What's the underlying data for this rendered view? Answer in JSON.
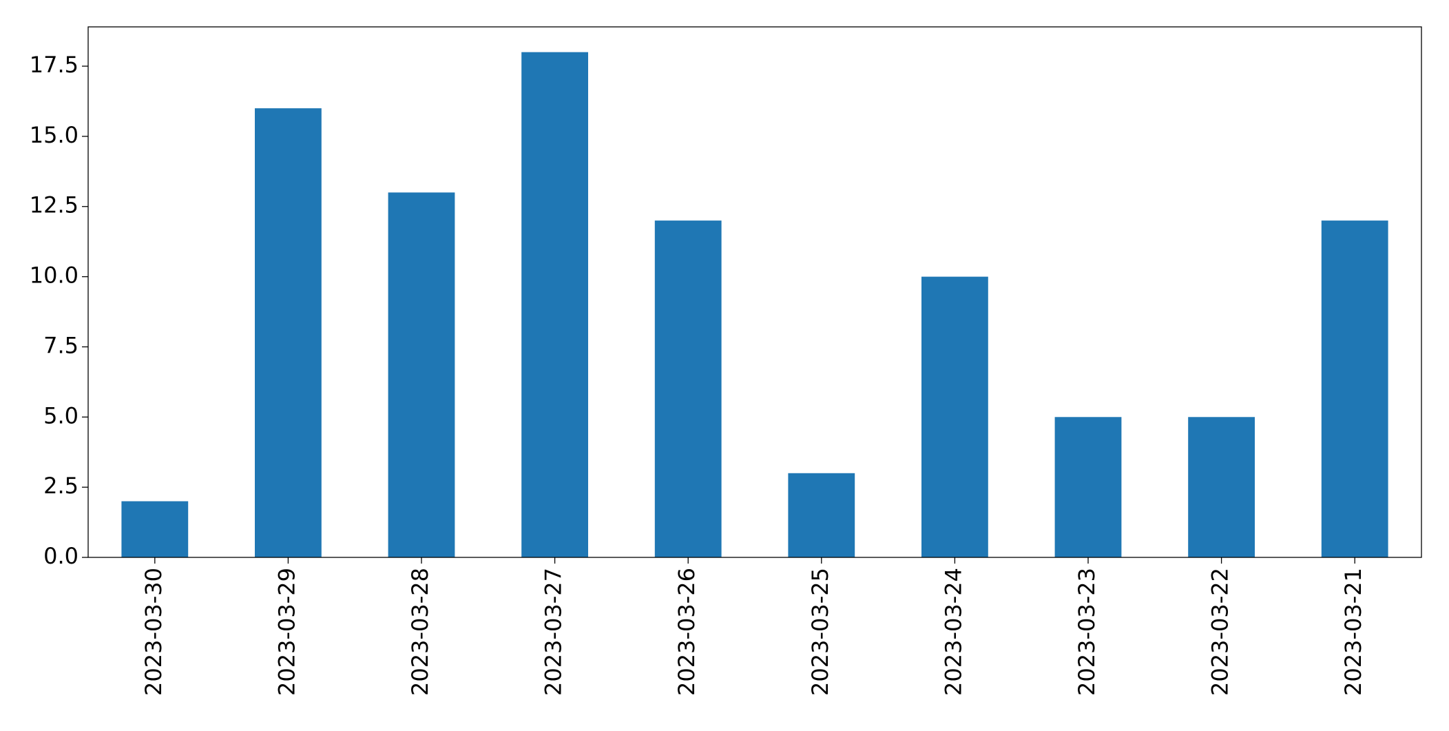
{
  "chart_data": {
    "type": "bar",
    "categories": [
      "2023-03-30",
      "2023-03-29",
      "2023-03-28",
      "2023-03-27",
      "2023-03-26",
      "2023-03-25",
      "2023-03-24",
      "2023-03-23",
      "2023-03-22",
      "2023-03-21"
    ],
    "values": [
      2,
      16,
      13,
      18,
      12,
      3,
      10,
      5,
      5,
      12
    ],
    "color": "#1f77b4",
    "ylim": [
      0,
      18.9
    ],
    "yticks": [
      {
        "value": 0,
        "label": "0.0"
      },
      2.5,
      {
        "value": 5,
        "label": "5.0"
      },
      7.5,
      {
        "value": 10,
        "label": "10.0"
      },
      12.5,
      {
        "value": 15,
        "label": "15.0"
      },
      17.5
    ],
    "grid": false
  }
}
